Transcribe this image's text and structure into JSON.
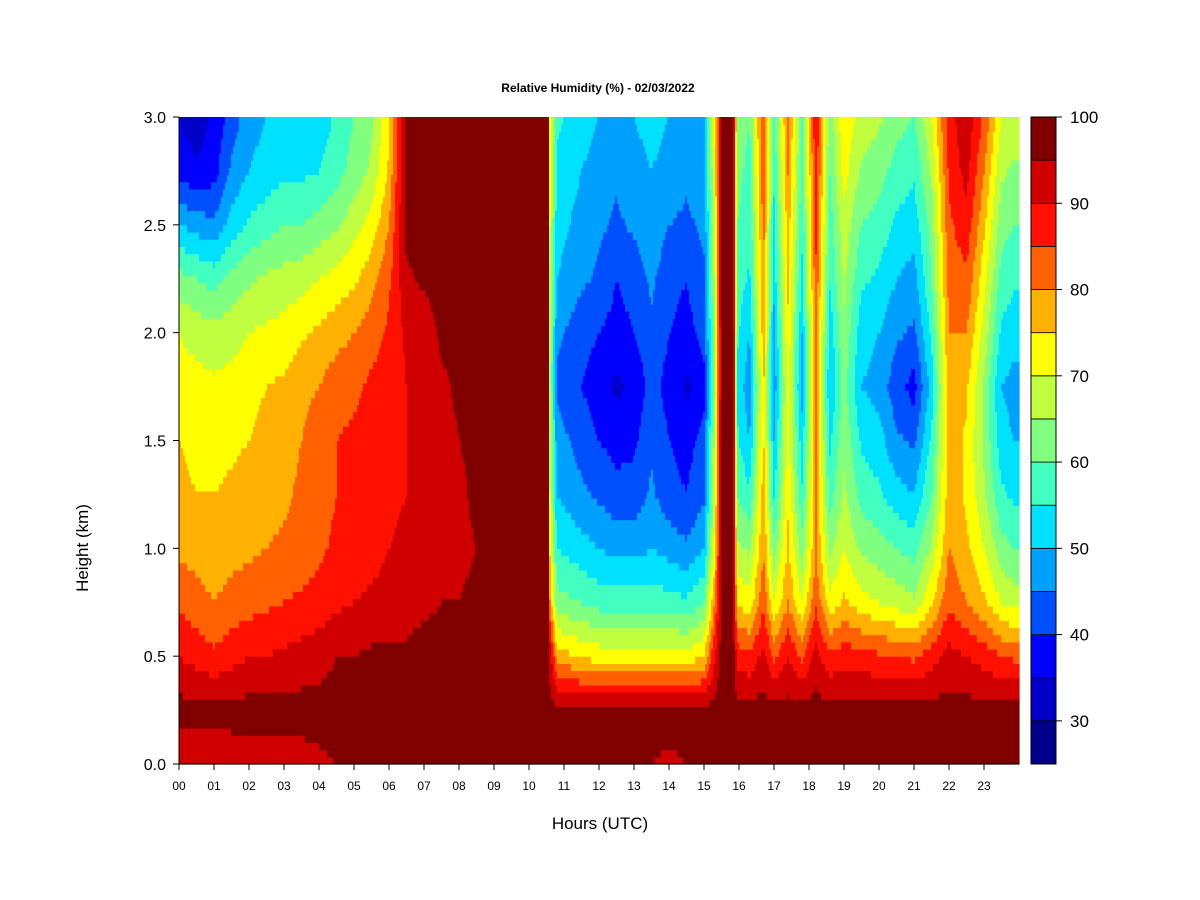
{
  "chart_data": {
    "type": "heatmap",
    "title": "Relative Humidity (%) - 02/03/2022",
    "xlabel": "Hours (UTC)",
    "ylabel": "Height (km)",
    "xlim": [
      0,
      24
    ],
    "ylim": [
      0.0,
      3.0
    ],
    "x_ticks": [
      "00",
      "01",
      "02",
      "03",
      "04",
      "05",
      "06",
      "07",
      "08",
      "09",
      "10",
      "11",
      "12",
      "13",
      "14",
      "15",
      "16",
      "17",
      "18",
      "19",
      "20",
      "21",
      "22",
      "23"
    ],
    "y_ticks": [
      "0.0",
      "0.5",
      "1.0",
      "1.5",
      "2.0",
      "2.5",
      "3.0"
    ],
    "colorbar": {
      "range": [
        25,
        100
      ],
      "ticks": [
        "30",
        "40",
        "50",
        "60",
        "70",
        "80",
        "90",
        "100"
      ],
      "levels": [
        {
          "min": 25,
          "max": 30,
          "color": "#00008b"
        },
        {
          "min": 30,
          "max": 35,
          "color": "#0000c8"
        },
        {
          "min": 35,
          "max": 40,
          "color": "#0000ff"
        },
        {
          "min": 40,
          "max": 45,
          "color": "#0050ff"
        },
        {
          "min": 45,
          "max": 50,
          "color": "#00a0ff"
        },
        {
          "min": 50,
          "max": 55,
          "color": "#00e0ff"
        },
        {
          "min": 55,
          "max": 60,
          "color": "#40ffc0"
        },
        {
          "min": 60,
          "max": 65,
          "color": "#80ff80"
        },
        {
          "min": 65,
          "max": 70,
          "color": "#c0ff40"
        },
        {
          "min": 70,
          "max": 75,
          "color": "#ffff00"
        },
        {
          "min": 75,
          "max": 80,
          "color": "#ffb000"
        },
        {
          "min": 80,
          "max": 85,
          "color": "#ff6000"
        },
        {
          "min": 85,
          "max": 90,
          "color": "#ff1000"
        },
        {
          "min": 90,
          "max": 95,
          "color": "#d00000"
        },
        {
          "min": 95,
          "max": 100,
          "color": "#800000"
        }
      ]
    },
    "heights_km": [
      0.0,
      0.25,
      0.5,
      0.75,
      1.0,
      1.25,
      1.5,
      1.75,
      2.0,
      2.25,
      2.5,
      2.75,
      3.0
    ],
    "columns": [
      {
        "x": 0.0,
        "rh": [
          92,
          97,
          90,
          84,
          79,
          76,
          75,
          72,
          70,
          62,
          50,
          38,
          35
        ]
      },
      {
        "x": 0.5,
        "rh": [
          91,
          97,
          88,
          82,
          78,
          75,
          74,
          72,
          68,
          60,
          48,
          36,
          32
        ]
      },
      {
        "x": 1.0,
        "rh": [
          90,
          97,
          86,
          80,
          77,
          75,
          73,
          71,
          67,
          58,
          46,
          38,
          36
        ]
      },
      {
        "x": 1.5,
        "rh": [
          92,
          97,
          88,
          82,
          78,
          76,
          74,
          72,
          68,
          62,
          52,
          46,
          42
        ]
      },
      {
        "x": 2.0,
        "rh": [
          93,
          97,
          90,
          83,
          79,
          77,
          75,
          73,
          70,
          64,
          56,
          50,
          48
        ]
      },
      {
        "x": 2.5,
        "rh": [
          93,
          97,
          90,
          84,
          80,
          78,
          77,
          75,
          71,
          66,
          58,
          52,
          50
        ]
      },
      {
        "x": 3.0,
        "rh": [
          93,
          97,
          91,
          85,
          81,
          79,
          78,
          76,
          72,
          67,
          60,
          54,
          52
        ]
      },
      {
        "x": 3.5,
        "rh": [
          93,
          97,
          92,
          86,
          82,
          81,
          80,
          79,
          74,
          68,
          60,
          54,
          50
        ]
      },
      {
        "x": 4.0,
        "rh": [
          94,
          97,
          93,
          87,
          84,
          83,
          82,
          80,
          76,
          70,
          62,
          55,
          52
        ]
      },
      {
        "x": 4.5,
        "rh": [
          95,
          97,
          95,
          89,
          86,
          85,
          85,
          83,
          78,
          72,
          64,
          58,
          56
        ]
      },
      {
        "x": 5.0,
        "rh": [
          96,
          97,
          95,
          90,
          87,
          86,
          86,
          84,
          80,
          74,
          68,
          62,
          60
        ]
      },
      {
        "x": 5.5,
        "rh": [
          96,
          97,
          96,
          91,
          88,
          87,
          87,
          86,
          83,
          78,
          72,
          66,
          64
        ]
      },
      {
        "x": 6.0,
        "rh": [
          96,
          97,
          96,
          92,
          90,
          89,
          88,
          87,
          86,
          84,
          80,
          76,
          74
        ]
      },
      {
        "x": 6.5,
        "rh": [
          97,
          97,
          96,
          93,
          91,
          90,
          90,
          90,
          91,
          94,
          97,
          97,
          97
        ]
      },
      {
        "x": 7.0,
        "rh": [
          96,
          97,
          97,
          94,
          92,
          91,
          91,
          91,
          92,
          96,
          97,
          97,
          97
        ]
      },
      {
        "x": 7.5,
        "rh": [
          95,
          97,
          97,
          95,
          93,
          92,
          93,
          94,
          96,
          97,
          97,
          97,
          97
        ]
      },
      {
        "x": 8.0,
        "rh": [
          96,
          97,
          97,
          95,
          94,
          94,
          95,
          96,
          97,
          97,
          97,
          97,
          97
        ]
      },
      {
        "x": 8.5,
        "rh": [
          97,
          97,
          97,
          96,
          95,
          96,
          96,
          97,
          97,
          97,
          97,
          97,
          97
        ]
      },
      {
        "x": 9.0,
        "rh": [
          96,
          97,
          97,
          96,
          96,
          97,
          97,
          97,
          97,
          97,
          97,
          97,
          97
        ]
      },
      {
        "x": 9.5,
        "rh": [
          96,
          97,
          97,
          97,
          97,
          97,
          97,
          97,
          97,
          97,
          97,
          97,
          97
        ]
      },
      {
        "x": 10.0,
        "rh": [
          96,
          97,
          97,
          97,
          97,
          97,
          97,
          97,
          97,
          97,
          97,
          97,
          97
        ]
      },
      {
        "x": 10.55,
        "rh": [
          96,
          97,
          97,
          97,
          97,
          97,
          97,
          97,
          97,
          97,
          97,
          97,
          97
        ]
      },
      {
        "x": 10.6,
        "rh": [
          95,
          97,
          93,
          80,
          74,
          70,
          68,
          66,
          66,
          68,
          70,
          72,
          74
        ]
      },
      {
        "x": 10.8,
        "rh": [
          95,
          97,
          78,
          62,
          55,
          50,
          47,
          44,
          46,
          50,
          52,
          54,
          56
        ]
      },
      {
        "x": 11.5,
        "rh": [
          95,
          97,
          74,
          60,
          52,
          46,
          43,
          40,
          42,
          46,
          48,
          50,
          52
        ]
      },
      {
        "x": 12.0,
        "rh": [
          95,
          97,
          73,
          58,
          50,
          44,
          40,
          37,
          40,
          44,
          46,
          48,
          50
        ]
      },
      {
        "x": 12.5,
        "rh": [
          95,
          97,
          72,
          58,
          48,
          42,
          38,
          34,
          38,
          40,
          44,
          46,
          48
        ]
      },
      {
        "x": 13.0,
        "rh": [
          95,
          97,
          72,
          58,
          48,
          42,
          39,
          36,
          40,
          42,
          46,
          48,
          50
        ]
      },
      {
        "x": 13.5,
        "rh": [
          95,
          97,
          73,
          58,
          50,
          46,
          44,
          42,
          44,
          46,
          48,
          50,
          52
        ]
      },
      {
        "x": 14.0,
        "rh": [
          94,
          97,
          73,
          57,
          48,
          42,
          40,
          38,
          40,
          42,
          45,
          48,
          50
        ]
      },
      {
        "x": 14.5,
        "rh": [
          95,
          97,
          72,
          56,
          46,
          40,
          38,
          34,
          38,
          40,
          44,
          46,
          48
        ]
      },
      {
        "x": 15.0,
        "rh": [
          95,
          97,
          75,
          60,
          50,
          44,
          42,
          38,
          42,
          44,
          46,
          48,
          50
        ]
      },
      {
        "x": 15.3,
        "rh": [
          96,
          97,
          90,
          80,
          72,
          68,
          66,
          64,
          64,
          66,
          68,
          70,
          72
        ]
      },
      {
        "x": 15.5,
        "rh": [
          96,
          97,
          97,
          97,
          97,
          97,
          97,
          97,
          97,
          97,
          97,
          97,
          97
        ]
      },
      {
        "x": 15.85,
        "rh": [
          96,
          97,
          96,
          95,
          95,
          95,
          95,
          95,
          95,
          95,
          95,
          95,
          96
        ]
      },
      {
        "x": 15.95,
        "rh": [
          96,
          97,
          88,
          74,
          66,
          60,
          56,
          54,
          56,
          58,
          60,
          62,
          64
        ]
      },
      {
        "x": 16.3,
        "rh": [
          96,
          97,
          86,
          72,
          64,
          56,
          50,
          46,
          50,
          54,
          56,
          58,
          60
        ]
      },
      {
        "x": 16.7,
        "rh": [
          96,
          97,
          92,
          84,
          80,
          78,
          76,
          76,
          78,
          80,
          82,
          84,
          86
        ]
      },
      {
        "x": 17.0,
        "rh": [
          96,
          97,
          84,
          70,
          62,
          54,
          50,
          46,
          48,
          52,
          54,
          56,
          58
        ]
      },
      {
        "x": 17.4,
        "rh": [
          96,
          97,
          90,
          80,
          76,
          74,
          72,
          72,
          74,
          76,
          78,
          80,
          82
        ]
      },
      {
        "x": 17.8,
        "rh": [
          96,
          97,
          84,
          70,
          62,
          56,
          52,
          48,
          50,
          54,
          56,
          58,
          60
        ]
      },
      {
        "x": 18.2,
        "rh": [
          96,
          97,
          92,
          84,
          80,
          80,
          80,
          80,
          82,
          84,
          86,
          88,
          90
        ]
      },
      {
        "x": 18.6,
        "rh": [
          96,
          97,
          86,
          72,
          64,
          58,
          54,
          50,
          52,
          56,
          58,
          60,
          62
        ]
      },
      {
        "x": 19.0,
        "rh": [
          96,
          97,
          88,
          76,
          70,
          66,
          64,
          62,
          64,
          66,
          68,
          72,
          74
        ]
      },
      {
        "x": 19.5,
        "rh": [
          96,
          97,
          87,
          72,
          64,
          58,
          54,
          50,
          52,
          56,
          60,
          64,
          68
        ]
      },
      {
        "x": 20.0,
        "rh": [
          96,
          97,
          86,
          70,
          62,
          56,
          52,
          48,
          50,
          54,
          58,
          62,
          66
        ]
      },
      {
        "x": 20.5,
        "rh": [
          96,
          97,
          85,
          68,
          60,
          52,
          46,
          42,
          46,
          50,
          54,
          58,
          62
        ]
      },
      {
        "x": 21.0,
        "rh": [
          96,
          97,
          84,
          66,
          58,
          50,
          44,
          38,
          44,
          48,
          52,
          56,
          60
        ]
      },
      {
        "x": 21.5,
        "rh": [
          96,
          97,
          88,
          74,
          66,
          60,
          56,
          52,
          56,
          60,
          62,
          66,
          70
        ]
      },
      {
        "x": 22.0,
        "rh": [
          96,
          97,
          92,
          84,
          80,
          78,
          78,
          78,
          80,
          82,
          84,
          86,
          88
        ]
      },
      {
        "x": 22.5,
        "rh": [
          96,
          97,
          90,
          80,
          76,
          74,
          74,
          76,
          80,
          84,
          88,
          92,
          94
        ]
      },
      {
        "x": 23.0,
        "rh": [
          96,
          97,
          88,
          76,
          70,
          66,
          64,
          64,
          68,
          72,
          76,
          80,
          84
        ]
      },
      {
        "x": 23.5,
        "rh": [
          96,
          97,
          85,
          70,
          62,
          56,
          52,
          50,
          54,
          58,
          62,
          66,
          70
        ]
      },
      {
        "x": 23.85,
        "rh": [
          96,
          97,
          84,
          68,
          60,
          54,
          50,
          48,
          52,
          56,
          60,
          64,
          68
        ]
      }
    ]
  }
}
